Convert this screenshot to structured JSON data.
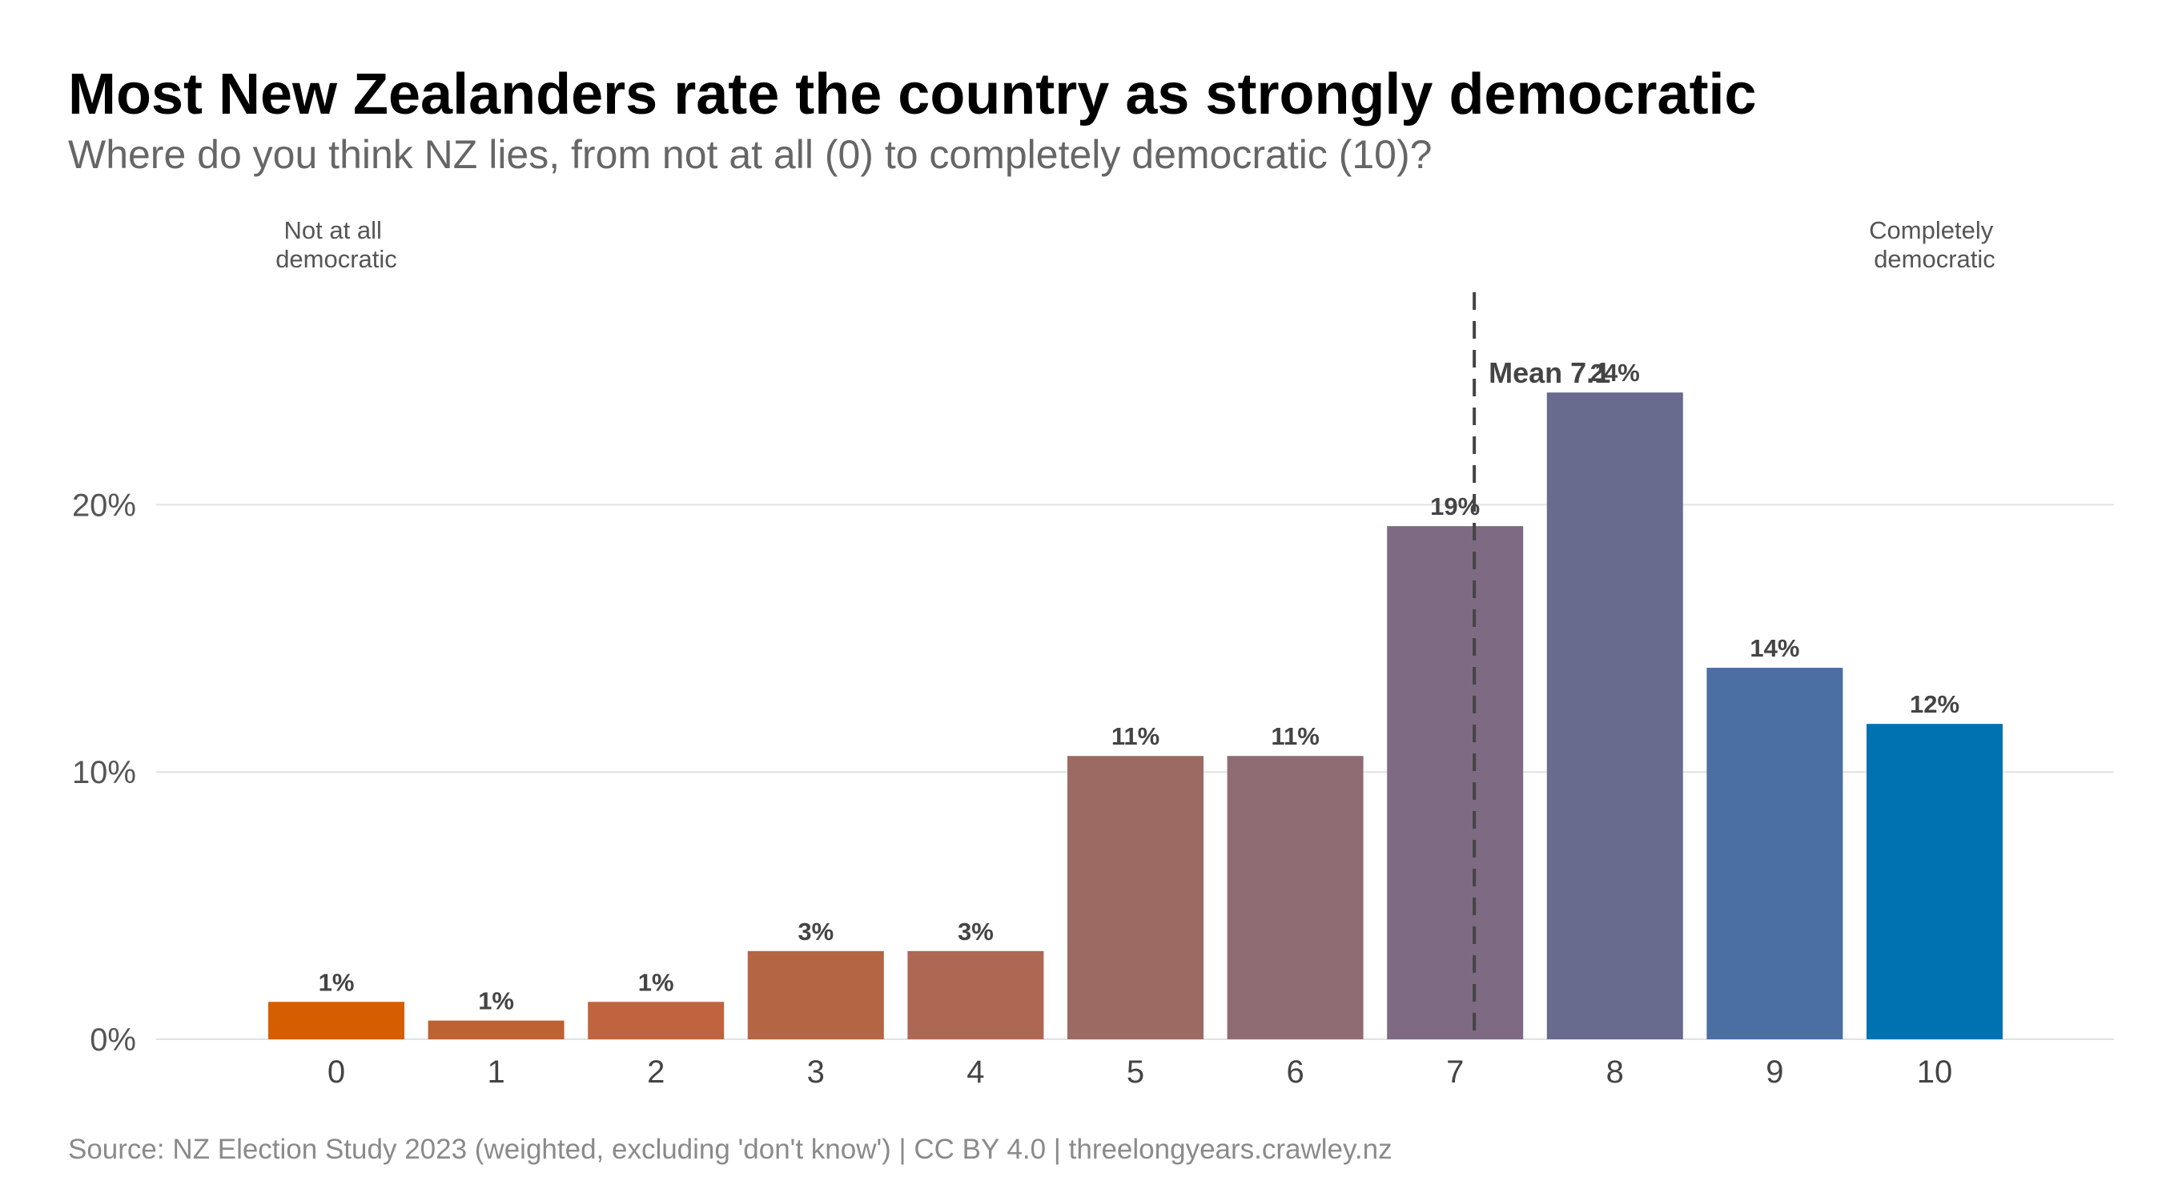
{
  "chart_data": {
    "type": "bar",
    "title": "Most New Zealanders rate the country as strongly democratic",
    "subtitle": "Where do you think NZ lies, from not at all (0) to completely democratic (10)?",
    "categories": [
      "0",
      "1",
      "2",
      "3",
      "4",
      "5",
      "6",
      "7",
      "8",
      "9",
      "10"
    ],
    "values": [
      1.4,
      0.7,
      1.4,
      3.3,
      3.3,
      10.6,
      10.6,
      19.2,
      24.2,
      13.9,
      11.8
    ],
    "value_labels": [
      "1%",
      "1%",
      "1%",
      "3%",
      "3%",
      "11%",
      "11%",
      "19%",
      "24%",
      "14%",
      "12%"
    ],
    "colors": [
      "#d55e00",
      "#bf6233",
      "#c0643f",
      "#b46544",
      "#ae6752",
      "#9c6a63",
      "#8f6c73",
      "#7e6a83",
      "#686b8d",
      "#4b6fa2",
      "#0072b2"
    ],
    "ylim": [
      0,
      29
    ],
    "yticks": [
      0,
      10,
      20
    ],
    "ytick_labels": [
      "0%",
      "10%",
      "20%"
    ],
    "grid": true,
    "mean": {
      "value": 7.12,
      "label": "Mean 7.1"
    },
    "end_labels": {
      "low": [
        "Not at all",
        "democratic"
      ],
      "high": [
        "Completely",
        "democratic"
      ]
    },
    "caption": "Source: NZ Election Study 2023 (weighted, excluding 'don't know') | CC BY 4.0 | threelongyears.crawley.nz"
  }
}
